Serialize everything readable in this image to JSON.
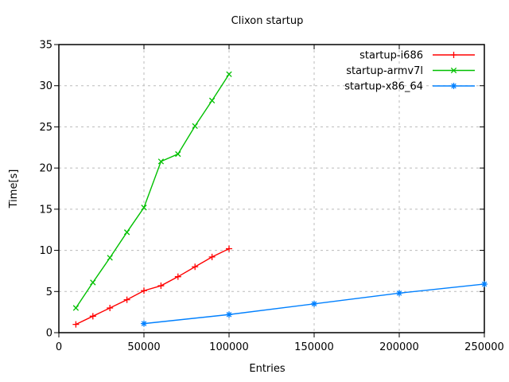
{
  "title": "Clixon startup",
  "chart_data": {
    "type": "line",
    "title": "Clixon startup",
    "xlabel": "Entries",
    "ylabel": "Time[s]",
    "xlim": [
      0,
      250000
    ],
    "ylim": [
      0,
      35
    ],
    "xticks": [
      0,
      50000,
      100000,
      150000,
      200000,
      250000
    ],
    "yticks": [
      0,
      5,
      10,
      15,
      20,
      25,
      30,
      35
    ],
    "grid": true,
    "legend_position": "top-right-inside",
    "series": [
      {
        "name": "startup-i686",
        "color": "#ff0000",
        "marker": "plus",
        "x": [
          10000,
          20000,
          30000,
          40000,
          50000,
          60000,
          70000,
          80000,
          90000,
          100000
        ],
        "y": [
          1.0,
          2.0,
          3.0,
          4.0,
          5.1,
          5.7,
          6.8,
          8.0,
          9.2,
          10.2
        ]
      },
      {
        "name": "startup-armv7l",
        "color": "#00c000",
        "marker": "cross",
        "x": [
          10000,
          20000,
          30000,
          40000,
          50000,
          60000,
          70000,
          80000,
          90000,
          100000
        ],
        "y": [
          3.0,
          6.1,
          9.1,
          12.2,
          15.2,
          20.8,
          21.7,
          25.1,
          28.2,
          31.4
        ]
      },
      {
        "name": "startup-x86_64",
        "color": "#0080ff",
        "marker": "asterisk",
        "x": [
          50000,
          100000,
          150000,
          200000,
          250000
        ],
        "y": [
          1.1,
          2.2,
          3.5,
          4.8,
          5.9
        ]
      }
    ]
  },
  "colors": {
    "background": "#ffffff",
    "grid": "#bbbbbb",
    "axis": "#000000",
    "text": "#000000"
  }
}
